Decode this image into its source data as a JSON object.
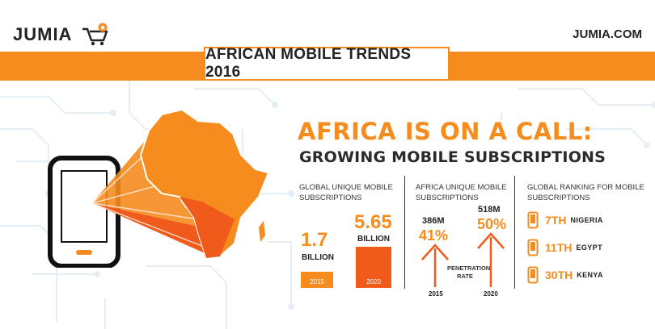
{
  "header": {
    "brand": "JUMIA",
    "site_url": "JUMIA.COM",
    "title": "AFRICAN MOBILE TRENDS 2016"
  },
  "headline": {
    "main": "AFRICA IS ON A CALL:",
    "sub": "GROWING MOBILE SUBSCRIPTIONS"
  },
  "global_subs": {
    "label": "GLOBAL UNIQUE MOBILE SUBSCRIPTIONS",
    "v2015": "1.7",
    "v2020": "5.65",
    "unit": "BILLION",
    "year_a": "2015",
    "year_b": "2020"
  },
  "africa_subs": {
    "label": "AFRICA UNIQUE MOBILE SUBSCRIPTIONS",
    "v2015": "386M",
    "v2020": "518M",
    "pen2015": "41%",
    "pen2020": "50%",
    "pen_label": "PENETRATION RATE",
    "year_a": "2015",
    "year_b": "2020"
  },
  "ranking": {
    "label": "GLOBAL RANKING FOR MOBILE SUBSCRIPTIONS",
    "items": [
      {
        "rank": "7TH",
        "country": "NIGERIA"
      },
      {
        "rank": "11TH",
        "country": "EGYPT"
      },
      {
        "rank": "30TH",
        "country": "KENYA"
      }
    ]
  },
  "colors": {
    "accent": "#f68b1e",
    "accent_dark": "#f05a1a",
    "text": "#222222"
  }
}
